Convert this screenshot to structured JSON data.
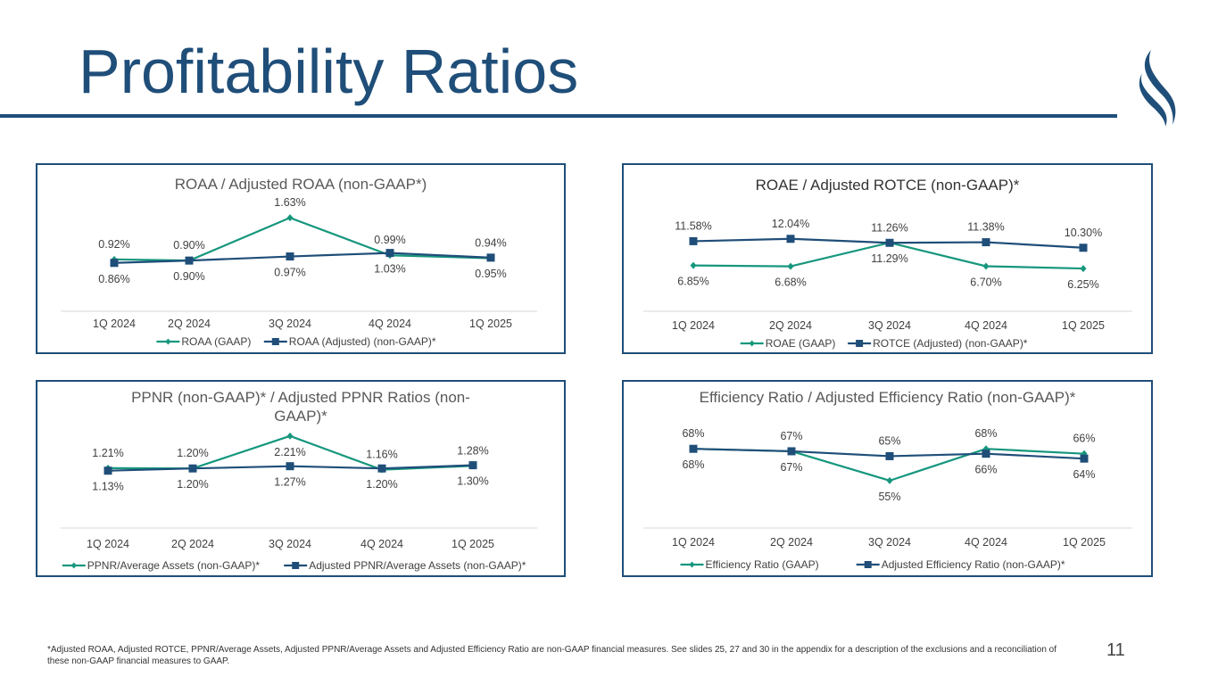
{
  "slide": {
    "title": "Profitability Ratios",
    "page_number": "11",
    "footnote": "*Adjusted ROAA, Adjusted ROTCE, PPNR/Average Assets, Adjusted PPNR/Average Assets and Adjusted Efficiency Ratio are non-GAAP financial measures. See slides 25, 27 and 30 in the appendix for a description of the exclusions and a reconciliation of these non-GAAP financial measures to GAAP.",
    "colors": {
      "primary": "#1f4e79",
      "gaap_series": "#16977d",
      "adjusted_series": "#1f4e79"
    }
  },
  "chart_data": [
    {
      "type": "line",
      "title": "ROAA / Adjusted ROAA (non-GAAP*)",
      "categories": [
        "1Q 2024",
        "2Q 2024",
        "3Q 2024",
        "4Q 2024",
        "1Q 2025"
      ],
      "series": [
        {
          "name": "ROAA (GAAP)",
          "marker": "diamond",
          "values": [
            0.92,
            0.9,
            1.63,
            0.99,
            0.94
          ],
          "labels": [
            "0.92%",
            "0.90%",
            "1.63%",
            "0.99%",
            "0.94%"
          ]
        },
        {
          "name": "ROAA (Adjusted) (non-GAAP)*",
          "marker": "square",
          "values": [
            0.86,
            0.9,
            0.97,
            1.03,
            0.95
          ],
          "labels": [
            "0.86%",
            "0.90%",
            "0.97%",
            "1.03%",
            "0.95%"
          ]
        }
      ],
      "ylim": [
        0.4,
        1.8
      ],
      "legend": "bottom",
      "grid": false
    },
    {
      "type": "line",
      "title": "ROAE / Adjusted ROTCE (non-GAAP)*",
      "categories": [
        "1Q 2024",
        "2Q 2024",
        "3Q 2024",
        "4Q 2024",
        "1Q 2025"
      ],
      "series": [
        {
          "name": "ROAE (GAAP)",
          "marker": "diamond",
          "values": [
            6.85,
            6.68,
            11.29,
            6.7,
            6.25
          ],
          "labels": [
            "6.85%",
            "6.68%",
            "11.29%",
            "6.70%",
            "6.25%"
          ]
        },
        {
          "name": "ROTCE (Adjusted) (non-GAAP)*",
          "marker": "square",
          "values": [
            11.58,
            12.04,
            11.26,
            11.38,
            10.3
          ],
          "labels": [
            "11.58%",
            "12.04%",
            "11.26%",
            "11.38%",
            "10.30%"
          ]
        }
      ],
      "ylim": [
        0,
        16
      ],
      "legend": "bottom",
      "grid": false
    },
    {
      "type": "line",
      "title": "PPNR (non-GAAP)* / Adjusted PPNR Ratios (non-GAAP)*",
      "categories": [
        "1Q 2024",
        "2Q 2024",
        "3Q 2024",
        "4Q 2024",
        "1Q 2025"
      ],
      "series": [
        {
          "name": "PPNR/Average Assets (non-GAAP)*",
          "marker": "diamond",
          "values": [
            1.21,
            1.2,
            2.21,
            1.16,
            1.28
          ],
          "labels": [
            "1.21%",
            "1.20%",
            "2.21%",
            "1.16%",
            "1.28%"
          ]
        },
        {
          "name": "Adjusted PPNR/Average Assets (non-GAAP)*",
          "marker": "square",
          "values": [
            1.13,
            1.2,
            1.27,
            1.2,
            1.3
          ],
          "labels": [
            "1.13%",
            "1.20%",
            "1.27%",
            "1.20%",
            "1.30%"
          ]
        }
      ],
      "ylim": [
        0.4,
        2.4
      ],
      "legend": "bottom",
      "grid": false
    },
    {
      "type": "line",
      "title": "Efficiency Ratio / Adjusted Efficiency Ratio (non-GAAP)*",
      "categories": [
        "1Q 2024",
        "2Q 2024",
        "3Q 2024",
        "4Q 2024",
        "1Q 2025"
      ],
      "series": [
        {
          "name": "Efficiency Ratio (GAAP)",
          "marker": "diamond",
          "values": [
            68,
            67,
            55,
            68,
            66
          ],
          "labels": [
            "68%",
            "67%",
            "55%",
            "68%",
            "66%"
          ]
        },
        {
          "name": "Adjusted Efficiency Ratio (non-GAAP)*",
          "marker": "square",
          "values": [
            68,
            67,
            65,
            66,
            64
          ],
          "labels": [
            "68%",
            "67%",
            "65%",
            "66%",
            "64%"
          ]
        }
      ],
      "ylim": [
        40,
        75
      ],
      "legend": "bottom",
      "grid": false
    }
  ]
}
